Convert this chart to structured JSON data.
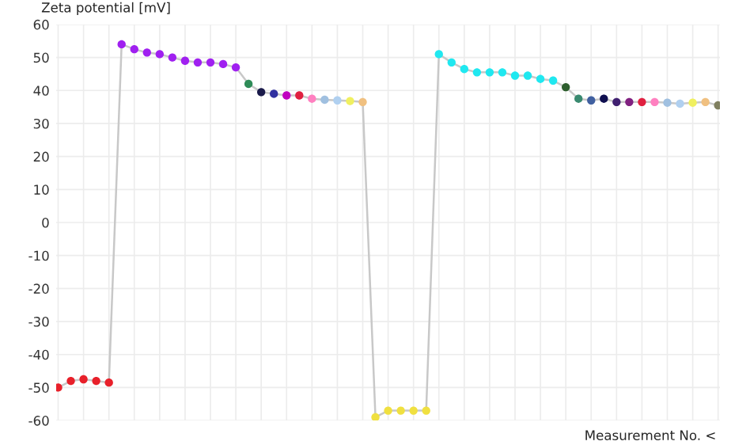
{
  "chart_data": {
    "type": "line",
    "ylabel": "Zeta potential [mV]",
    "xlabel": "Measurement No. <",
    "categories": [
      null,
      null,
      null,
      null,
      null,
      null,
      null,
      null,
      null,
      null,
      null,
      null,
      null,
      null,
      null,
      null,
      null,
      null,
      null,
      null,
      null,
      null,
      null,
      null,
      null,
      null,
      null,
      null,
      null,
      null,
      null,
      null,
      null,
      null,
      null,
      null,
      null,
      null,
      null,
      null,
      null,
      null,
      null,
      null,
      null,
      null,
      null,
      null,
      null,
      null,
      null,
      null,
      null
    ],
    "series": [
      {
        "color": "#c8c8c8",
        "values": [
          -50,
          -48,
          -47.5,
          -48,
          -48.5,
          54,
          52.5,
          51.5,
          51,
          50,
          49,
          48.5,
          48.5,
          48,
          47,
          42,
          39.5,
          39,
          38.5,
          38.5,
          37.5,
          37.2,
          37,
          36.8,
          36.5,
          -59,
          -57,
          -57,
          -57,
          -57,
          51,
          48.5,
          46.5,
          45.5,
          45.5,
          45.5,
          44.5,
          44.5,
          43.5,
          43,
          41,
          37.5,
          37,
          37.5,
          36.5,
          36.5,
          36.5,
          36.5,
          36.3,
          36,
          36.3,
          36.5,
          35.5
        ],
        "colors": [
          "#e8202a",
          "#e8202a",
          "#e8202a",
          "#e8202a",
          "#e8202a",
          "#a020f0",
          "#a020f0",
          "#a020f0",
          "#a020f0",
          "#a020f0",
          "#a020f0",
          "#a020f0",
          "#a020f0",
          "#a020f0",
          "#a020f0",
          "#2e8b57",
          "#1a1a4a",
          "#3030a0",
          "#c000c0",
          "#e02040",
          "#ff80c0",
          "#a0c0e0",
          "#b0d0f0",
          "#f0f060",
          "#f0c080",
          "#f0e040",
          "#f0e040",
          "#f0e040",
          "#f0e040",
          "#f0e040",
          "#20e8f0",
          "#20e8f0",
          "#20e8f0",
          "#20e8f0",
          "#20e8f0",
          "#20e8f0",
          "#20e8f0",
          "#20e8f0",
          "#20e8f0",
          "#20e8f0",
          "#2e5e2e",
          "#3a8a70",
          "#4060a0",
          "#101050",
          "#402070",
          "#802080",
          "#e02040",
          "#ff80c0",
          "#a0c0e0",
          "#b0d0f0",
          "#f0f060",
          "#f0c080",
          "#808060"
        ]
      }
    ],
    "ylim": [
      -60,
      60
    ],
    "yticks": [
      -60,
      -50,
      -40,
      -30,
      -20,
      -10,
      0,
      10,
      20,
      30,
      40,
      50,
      60
    ],
    "grid": true,
    "marker": "circle",
    "line_style": "solid",
    "legend": false
  }
}
